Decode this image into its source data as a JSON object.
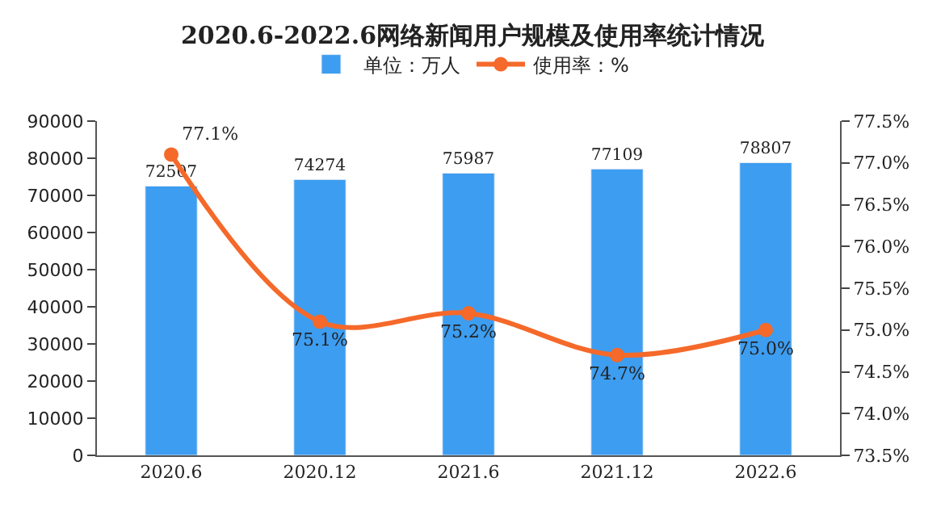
{
  "chart_data": {
    "type": "bar",
    "title": "2020.6-2022.6网络新闻用户规模及使用率统计情况",
    "categories": [
      "2020.6",
      "2020.12",
      "2021.6",
      "2021.12",
      "2022.6"
    ],
    "series": [
      {
        "name": "单位：万人",
        "color": "#3d9df0",
        "values": [
          72507,
          74274,
          75987,
          77109,
          78807
        ],
        "value_labels": [
          "72507",
          "74274",
          "75987",
          "77109",
          "78807"
        ]
      },
      {
        "name": "使用率：%",
        "type": "line",
        "axis": "y2",
        "color": "#f5692a",
        "marker": "circle",
        "values": [
          77.1,
          75.1,
          75.2,
          74.7,
          75.0
        ],
        "value_labels": [
          "77.1%",
          "75.1%",
          "75.2%",
          "74.7%",
          "75.0%"
        ]
      }
    ],
    "ylim": [
      0,
      90000
    ],
    "yticks": [
      0,
      10000,
      20000,
      30000,
      40000,
      50000,
      60000,
      70000,
      80000,
      90000
    ],
    "y2lim": [
      73.5,
      77.5
    ],
    "y2ticks": [
      {
        "value": 73.5,
        "label": "73.5%"
      },
      {
        "value": 74.0,
        "label": "74.0%"
      },
      {
        "value": 74.5,
        "label": "74.5%"
      },
      {
        "value": 75.0,
        "label": "75.0%"
      },
      {
        "value": 75.5,
        "label": "75.5%"
      },
      {
        "value": 76.0,
        "label": "76.0%"
      },
      {
        "value": 76.5,
        "label": "76.5%"
      },
      {
        "value": 77.0,
        "label": "77.0%"
      },
      {
        "value": 77.5,
        "label": "77.5%"
      }
    ],
    "legend": "top"
  }
}
